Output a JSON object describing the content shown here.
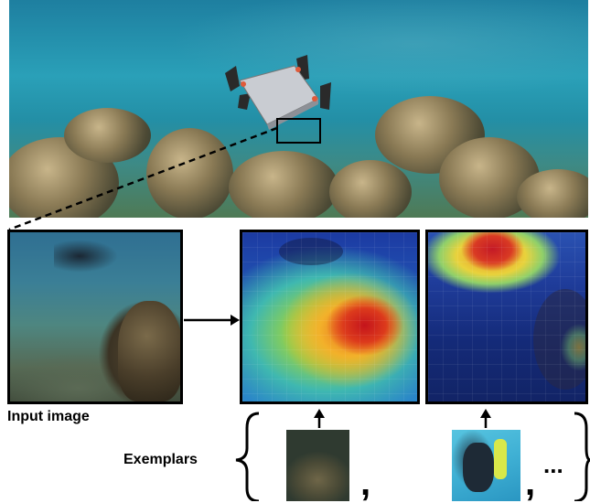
{
  "labels": {
    "input_image": "Input image",
    "exemplars": "Exemplars",
    "comma_1": ",",
    "comma_2": ",",
    "ellipsis": "..."
  },
  "colors": {
    "frame": "#000000",
    "robot_body": "#c9ccd2",
    "robot_fin": "#2a2a2a",
    "robot_accent": "#e05a3a"
  },
  "icons": {
    "connector": "dashed-line",
    "flow_arrow": "arrow-right",
    "exemplar_arrow": "arrow-up"
  }
}
